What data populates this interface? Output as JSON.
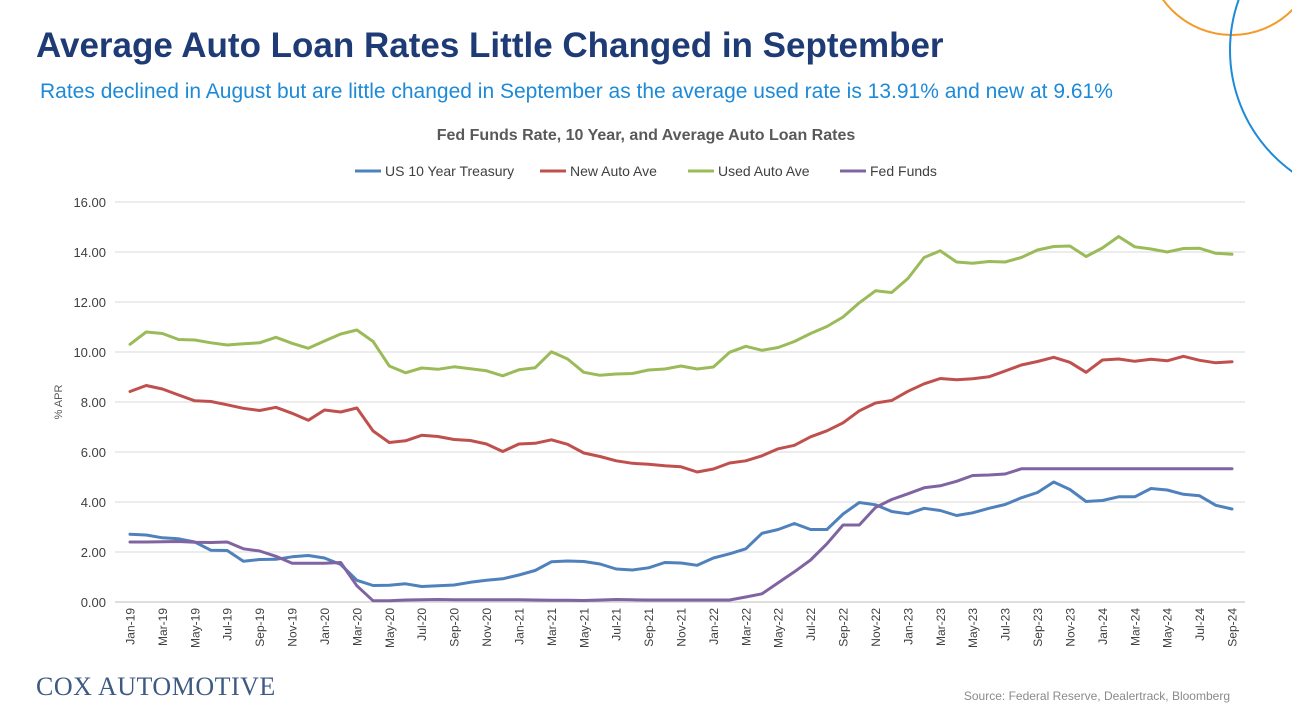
{
  "slide": {
    "title": "Average Auto Loan Rates Little Changed in September",
    "subtitle": "Rates declined in August but are little changed in September as the average used rate is 13.91% and new at 9.61%",
    "brand": "COX AUTOMOTIVE",
    "source": "Source: Federal Reserve, Dealertrack, Bloomberg"
  },
  "colors": {
    "title": "#1f3b75",
    "subtitle": "#1d8ad8",
    "decor_orange": "#f39a2b",
    "decor_blue": "#1d8ad8"
  },
  "chart_data": {
    "type": "line",
    "title": "Fed Funds Rate, 10 Year, and Average Auto Loan Rates",
    "xlabel": "",
    "ylabel": "% APR",
    "ylim": [
      0,
      16
    ],
    "yticks": [
      "0.00",
      "2.00",
      "4.00",
      "6.00",
      "8.00",
      "10.00",
      "12.00",
      "14.00",
      "16.00"
    ],
    "grid": true,
    "legend": "top-center",
    "x": [
      "Jan-19",
      "Feb-19",
      "Mar-19",
      "Apr-19",
      "May-19",
      "Jun-19",
      "Jul-19",
      "Aug-19",
      "Sep-19",
      "Oct-19",
      "Nov-19",
      "Dec-19",
      "Jan-20",
      "Feb-20",
      "Mar-20",
      "Apr-20",
      "May-20",
      "Jun-20",
      "Jul-20",
      "Aug-20",
      "Sep-20",
      "Oct-20",
      "Nov-20",
      "Dec-20",
      "Jan-21",
      "Feb-21",
      "Mar-21",
      "Apr-21",
      "May-21",
      "Jun-21",
      "Jul-21",
      "Aug-21",
      "Sep-21",
      "Oct-21",
      "Nov-21",
      "Dec-21",
      "Jan-22",
      "Feb-22",
      "Mar-22",
      "Apr-22",
      "May-22",
      "Jun-22",
      "Jul-22",
      "Aug-22",
      "Sep-22",
      "Oct-22",
      "Nov-22",
      "Dec-22",
      "Jan-23",
      "Feb-23",
      "Mar-23",
      "Apr-23",
      "May-23",
      "Jun-23",
      "Jul-23",
      "Aug-23",
      "Sep-23",
      "Oct-23",
      "Nov-23",
      "Dec-23",
      "Jan-24",
      "Feb-24",
      "Mar-24",
      "Apr-24",
      "May-24",
      "Jun-24",
      "Jul-24",
      "Aug-24",
      "Sep-24"
    ],
    "x_tick_labels": [
      "Jan-19",
      "Mar-19",
      "May-19",
      "Jul-19",
      "Sep-19",
      "Nov-19",
      "Jan-20",
      "Mar-20",
      "May-20",
      "Jul-20",
      "Sep-20",
      "Nov-20",
      "Jan-21",
      "Mar-21",
      "May-21",
      "Jul-21",
      "Sep-21",
      "Nov-21",
      "Jan-22",
      "Mar-22",
      "May-22",
      "Jul-22",
      "Sep-22",
      "Nov-22",
      "Jan-23",
      "Mar-23",
      "May-23",
      "Jul-23",
      "Sep-23",
      "Nov-23",
      "Jan-24",
      "Mar-24",
      "May-24",
      "Jul-24",
      "Sep-24"
    ],
    "series": [
      {
        "name": "US 10 Year Treasury",
        "color": "#4f81bd",
        "values": [
          2.71,
          2.68,
          2.57,
          2.53,
          2.4,
          2.07,
          2.06,
          1.63,
          1.7,
          1.71,
          1.81,
          1.86,
          1.76,
          1.5,
          0.87,
          0.66,
          0.67,
          0.73,
          0.62,
          0.65,
          0.68,
          0.79,
          0.87,
          0.93,
          1.08,
          1.26,
          1.61,
          1.64,
          1.62,
          1.52,
          1.32,
          1.28,
          1.37,
          1.58,
          1.56,
          1.47,
          1.76,
          1.93,
          2.13,
          2.75,
          2.9,
          3.14,
          2.9,
          2.9,
          3.52,
          3.98,
          3.89,
          3.62,
          3.53,
          3.75,
          3.66,
          3.46,
          3.57,
          3.75,
          3.9,
          4.17,
          4.38,
          4.8,
          4.5,
          4.02,
          4.06,
          4.21,
          4.21,
          4.54,
          4.48,
          4.31,
          4.25,
          3.87,
          3.72
        ]
      },
      {
        "name": "New Auto Ave",
        "color": "#c0504d",
        "values": [
          8.42,
          8.66,
          8.52,
          8.28,
          8.05,
          8.02,
          7.89,
          7.75,
          7.66,
          7.79,
          7.55,
          7.27,
          7.68,
          7.6,
          7.76,
          6.84,
          6.38,
          6.45,
          6.67,
          6.62,
          6.5,
          6.46,
          6.32,
          6.02,
          6.32,
          6.35,
          6.49,
          6.31,
          5.96,
          5.82,
          5.65,
          5.55,
          5.51,
          5.45,
          5.41,
          5.2,
          5.32,
          5.56,
          5.65,
          5.85,
          6.13,
          6.27,
          6.61,
          6.85,
          7.17,
          7.65,
          7.96,
          8.06,
          8.43,
          8.73,
          8.94,
          8.89,
          8.93,
          9.01,
          9.24,
          9.48,
          9.62,
          9.79,
          9.59,
          9.19,
          9.68,
          9.72,
          9.63,
          9.71,
          9.65,
          9.83,
          9.67,
          9.57,
          9.61
        ]
      },
      {
        "name": "Used Auto Ave",
        "color": "#9bbb59",
        "values": [
          10.31,
          10.8,
          10.74,
          10.5,
          10.48,
          10.37,
          10.28,
          10.33,
          10.37,
          10.59,
          10.35,
          10.15,
          10.44,
          10.72,
          10.88,
          10.42,
          9.44,
          9.17,
          9.36,
          9.31,
          9.41,
          9.33,
          9.25,
          9.05,
          9.29,
          9.37,
          10.01,
          9.72,
          9.19,
          9.07,
          9.12,
          9.14,
          9.28,
          9.32,
          9.44,
          9.32,
          9.4,
          9.99,
          10.23,
          10.07,
          10.18,
          10.42,
          10.74,
          11.02,
          11.4,
          11.97,
          12.45,
          12.38,
          12.94,
          13.78,
          14.05,
          13.6,
          13.55,
          13.62,
          13.6,
          13.78,
          14.08,
          14.22,
          14.24,
          13.82,
          14.16,
          14.62,
          14.21,
          14.12,
          14.0,
          14.14,
          14.15,
          13.95,
          13.91
        ]
      },
      {
        "name": "Fed Funds",
        "color": "#8064a2",
        "values": [
          2.4,
          2.4,
          2.41,
          2.42,
          2.39,
          2.38,
          2.4,
          2.13,
          2.04,
          1.83,
          1.55,
          1.55,
          1.55,
          1.58,
          0.65,
          0.05,
          0.05,
          0.08,
          0.09,
          0.1,
          0.09,
          0.09,
          0.09,
          0.09,
          0.09,
          0.08,
          0.07,
          0.07,
          0.06,
          0.08,
          0.1,
          0.09,
          0.08,
          0.08,
          0.08,
          0.08,
          0.08,
          0.08,
          0.2,
          0.33,
          0.77,
          1.21,
          1.68,
          2.33,
          3.08,
          3.08,
          3.78,
          4.1,
          4.33,
          4.57,
          4.65,
          4.83,
          5.06,
          5.08,
          5.12,
          5.33,
          5.33,
          5.33,
          5.33,
          5.33,
          5.33,
          5.33,
          5.33,
          5.33,
          5.33,
          5.33,
          5.33,
          5.33,
          5.33
        ]
      }
    ]
  }
}
